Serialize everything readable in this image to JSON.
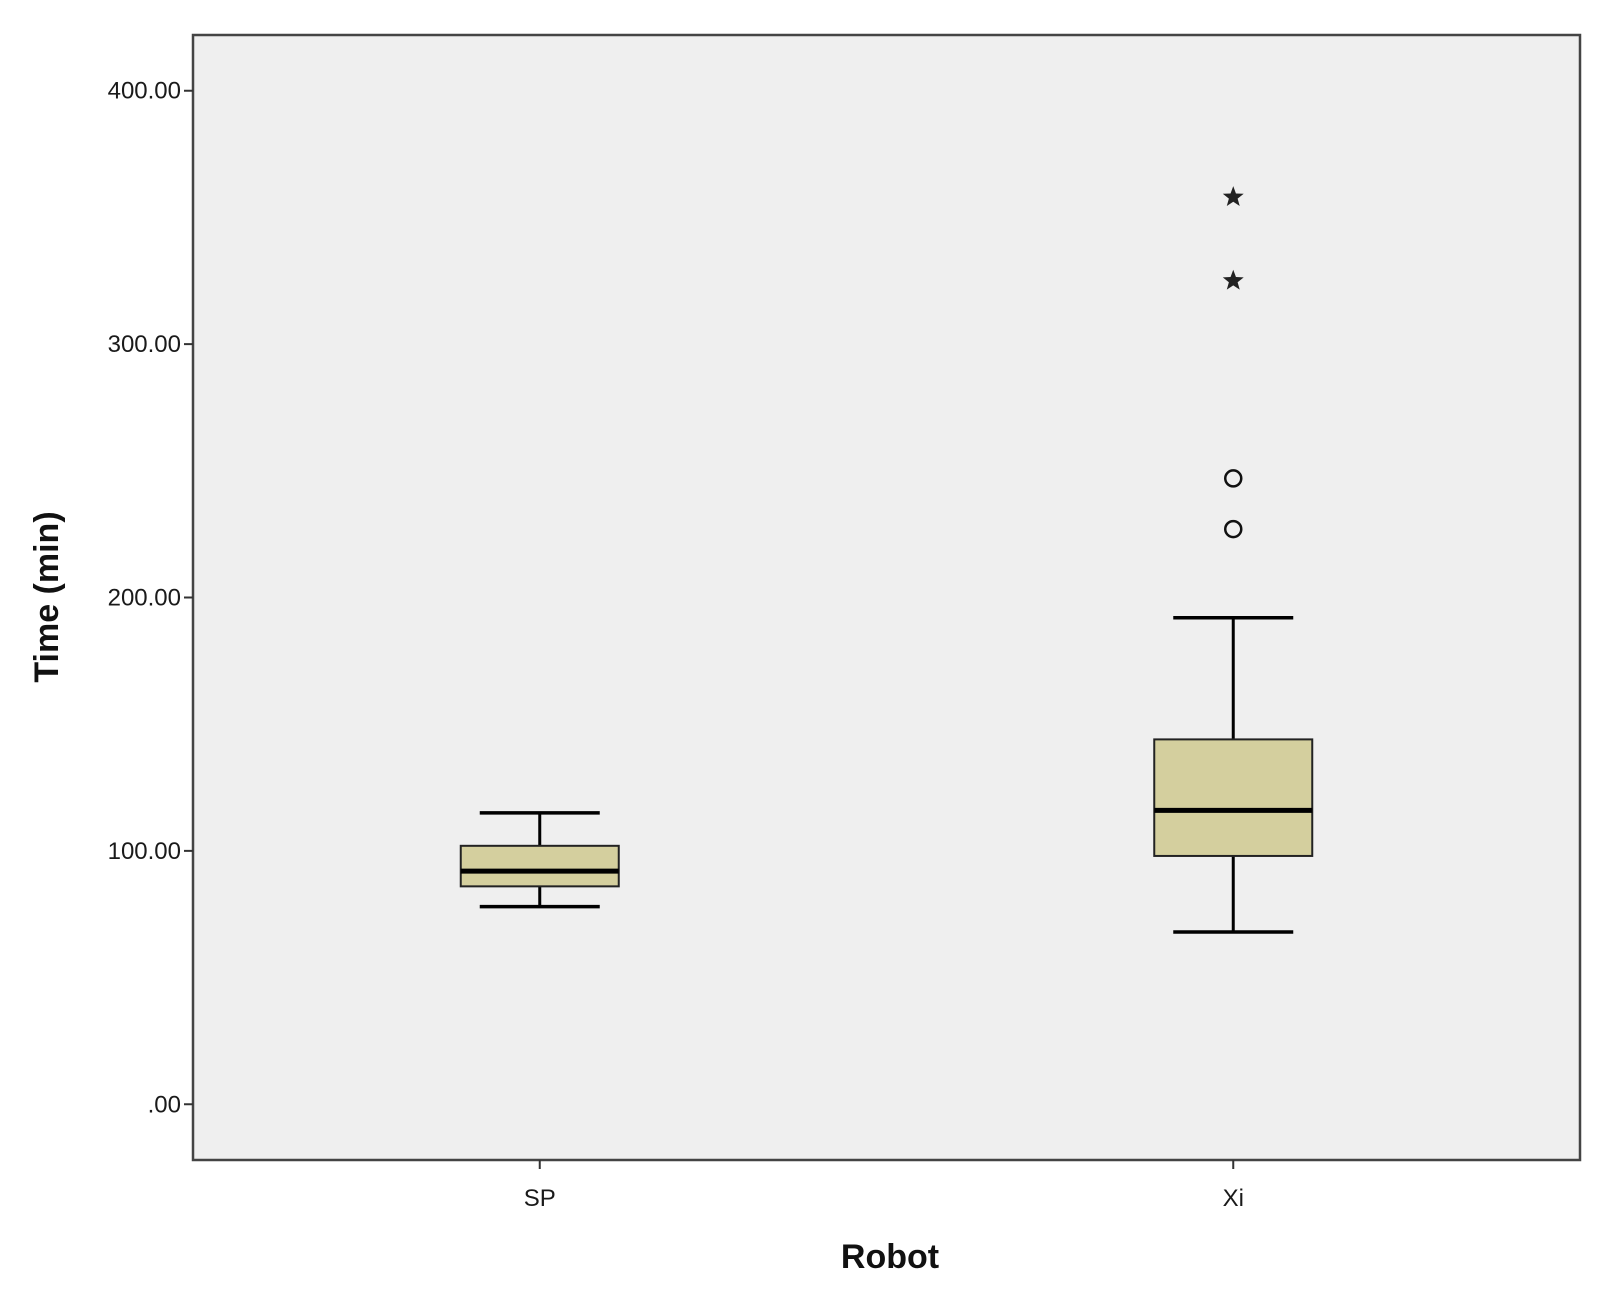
{
  "chart_data": {
    "type": "boxplot",
    "title": "",
    "xlabel": "Robot",
    "ylabel": "Time (min)",
    "ylim": [
      -22,
      422
    ],
    "yticks": [
      0,
      100,
      200,
      300,
      400
    ],
    "ytick_labels": [
      ".00",
      "100.00",
      "200.00",
      "300.00",
      "400.00"
    ],
    "categories": [
      "SP",
      "Xi"
    ],
    "boxes": [
      {
        "category": "SP",
        "whisker_low": 78,
        "q1": 86,
        "median": 92,
        "q3": 102,
        "whisker_high": 115,
        "outliers": [],
        "extremes": []
      },
      {
        "category": "Xi",
        "whisker_low": 68,
        "q1": 98,
        "median": 116,
        "q3": 144,
        "whisker_high": 192,
        "outliers": [
          227,
          247
        ],
        "extremes": [
          325,
          358
        ]
      }
    ],
    "grid": false,
    "legend": "none",
    "colors": {
      "plot_background": "#efefef",
      "box_fill": "#d4cf9e",
      "line": "#000000",
      "frame": "#444444"
    }
  }
}
